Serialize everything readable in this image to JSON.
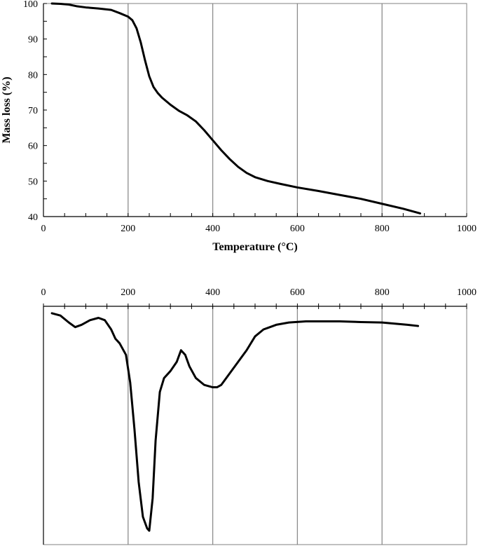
{
  "chart_data": [
    {
      "id": "tga",
      "type": "line",
      "title": "",
      "xlabel": "Temperature (°C)",
      "ylabel": "Mass loss (%)",
      "xlim": [
        0,
        1000
      ],
      "ylim": [
        40,
        100
      ],
      "x_ticks": [
        "0",
        "200",
        "400",
        "600",
        "800",
        "1000"
      ],
      "y_ticks": [
        "40",
        "50",
        "60",
        "70",
        "80",
        "90",
        "100"
      ],
      "grid": "vertical",
      "series": [
        {
          "color": "#000000",
          "x": [
            20,
            40,
            60,
            80,
            100,
            130,
            160,
            180,
            200,
            210,
            220,
            230,
            240,
            250,
            260,
            270,
            280,
            300,
            320,
            340,
            360,
            380,
            400,
            420,
            440,
            460,
            480,
            500,
            530,
            560,
            600,
            650,
            700,
            750,
            800,
            850,
            890
          ],
          "y": [
            100,
            99.9,
            99.7,
            99.2,
            98.9,
            98.6,
            98.2,
            97.3,
            96.3,
            95.3,
            93.0,
            89.0,
            84.0,
            79.5,
            76.5,
            74.8,
            73.5,
            71.5,
            69.8,
            68.5,
            66.8,
            64.3,
            61.5,
            58.7,
            56.2,
            54.0,
            52.3,
            51.1,
            50.0,
            49.2,
            48.2,
            47.2,
            46.1,
            45.0,
            43.6,
            42.2,
            40.9
          ]
        }
      ]
    },
    {
      "id": "dtg",
      "type": "line",
      "title": "",
      "xlabel": "",
      "ylabel": "",
      "xlim": [
        0,
        1000
      ],
      "ylim": [
        -10,
        0.3
      ],
      "x_ticks": [
        "0",
        "200",
        "400",
        "600",
        "800",
        "1000"
      ],
      "axis_position": "top",
      "grid": "vertical",
      "series": [
        {
          "color": "#000000",
          "x": [
            20,
            40,
            60,
            75,
            90,
            110,
            130,
            145,
            160,
            170,
            180,
            195,
            205,
            215,
            225,
            235,
            245,
            250,
            258,
            265,
            275,
            285,
            300,
            315,
            325,
            335,
            345,
            360,
            380,
            400,
            410,
            420,
            440,
            460,
            480,
            500,
            520,
            550,
            580,
            620,
            650,
            700,
            750,
            800,
            830,
            860,
            885
          ],
          "y": [
            0.0,
            -0.1,
            -0.4,
            -0.6,
            -0.5,
            -0.3,
            -0.2,
            -0.3,
            -0.7,
            -1.1,
            -1.3,
            -1.8,
            -3.0,
            -5.0,
            -7.3,
            -8.8,
            -9.3,
            -9.4,
            -8.0,
            -5.5,
            -3.4,
            -2.8,
            -2.5,
            -2.1,
            -1.6,
            -1.8,
            -2.3,
            -2.8,
            -3.1,
            -3.2,
            -3.2,
            -3.1,
            -2.6,
            -2.1,
            -1.6,
            -1.0,
            -0.7,
            -0.5,
            -0.4,
            -0.35,
            -0.35,
            -0.35,
            -0.38,
            -0.4,
            -0.45,
            -0.5,
            -0.55
          ]
        }
      ]
    }
  ]
}
